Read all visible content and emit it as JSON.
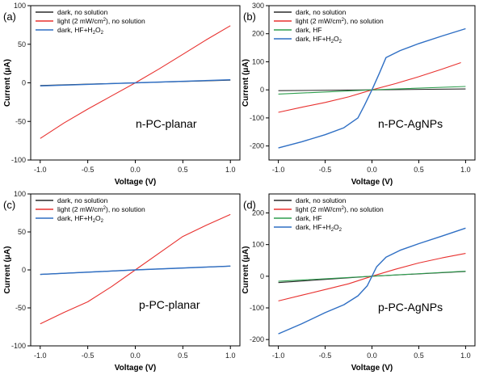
{
  "chart_data": [
    {
      "type": "line",
      "panel_label": "(a)",
      "annotation": "n-PC-planar",
      "xlabel": "Voltage (V)",
      "ylabel": "Current (μA)",
      "xlim": [
        -1.1,
        1.1
      ],
      "ylim": [
        -100,
        100
      ],
      "xticks": [
        -1.0,
        -0.5,
        0.0,
        0.5,
        1.0
      ],
      "xtick_labels": [
        "-1.0",
        "-0.5",
        "0.0",
        "0.5",
        "1.0"
      ],
      "yticks": [
        -100,
        -50,
        0,
        50,
        100
      ],
      "ytick_labels": [
        "-100",
        "-50",
        "0",
        "50",
        "100"
      ],
      "legend_position": "top-left",
      "grid": false,
      "series": [
        {
          "name": "dark, no solution",
          "color": "#2b2b2b",
          "x": [
            -1.0,
            0.0,
            1.0
          ],
          "y": [
            -3.5,
            0,
            3.5
          ]
        },
        {
          "name": "light (2 mW/cm",
          "name_sup": "2",
          "name_tail": "), no solution",
          "color": "#e8312f",
          "x": [
            -1.0,
            -0.75,
            -0.5,
            -0.25,
            0.0,
            0.25,
            0.5,
            0.75,
            1.0
          ],
          "y": [
            -72,
            -52,
            -34,
            -17,
            0,
            18,
            37,
            56,
            74
          ]
        },
        {
          "name": "dark, HF+H",
          "name_sub": "2",
          "name_tail": "O",
          "name_sub2": "2",
          "color": "#2f6fc4",
          "x": [
            -1.0,
            0.0,
            1.0
          ],
          "y": [
            -4,
            0,
            4
          ]
        }
      ]
    },
    {
      "type": "line",
      "panel_label": "(b)",
      "annotation": "n-PC-AgNPs",
      "xlabel": "Voltage (V)",
      "ylabel": "Current (μA)",
      "xlim": [
        -1.1,
        1.1
      ],
      "ylim": [
        -250,
        300
      ],
      "xticks": [
        -1.0,
        -0.5,
        0.0,
        0.5,
        1.0
      ],
      "xtick_labels": [
        "-1.0",
        "-0.5",
        "0.0",
        "0.5",
        "1.0"
      ],
      "yticks": [
        -200,
        -100,
        0,
        100,
        200,
        300
      ],
      "ytick_labels": [
        "-200",
        "-100",
        "0",
        "100",
        "200",
        "300"
      ],
      "legend_position": "top-left",
      "grid": false,
      "series": [
        {
          "name": "dark, no solution",
          "color": "#2b2b2b",
          "x": [
            -1.0,
            0.0,
            1.0
          ],
          "y": [
            -3,
            0,
            3
          ]
        },
        {
          "name": "light (2 mW/cm",
          "name_sup": "2",
          "name_tail": "), no solution",
          "color": "#e8312f",
          "x": [
            -1.0,
            -0.75,
            -0.5,
            -0.25,
            0.0,
            0.25,
            0.5,
            0.75,
            0.95
          ],
          "y": [
            -80,
            -62,
            -45,
            -25,
            0,
            22,
            47,
            74,
            97
          ]
        },
        {
          "name": "dark, HF",
          "color": "#2e9e4e",
          "x": [
            -1.0,
            0.0,
            1.0
          ],
          "y": [
            -15,
            0,
            12
          ]
        },
        {
          "name": "dark, HF+H",
          "name_sub": "2",
          "name_tail": "O",
          "name_sub2": "2",
          "color": "#2f6fc4",
          "x": [
            -1.0,
            -0.75,
            -0.5,
            -0.3,
            -0.15,
            -0.08,
            0.0,
            0.08,
            0.15,
            0.3,
            0.5,
            0.75,
            1.0
          ],
          "y": [
            -207,
            -185,
            -160,
            -135,
            -100,
            -55,
            0,
            60,
            115,
            140,
            165,
            192,
            218
          ]
        }
      ]
    },
    {
      "type": "line",
      "panel_label": "(c)",
      "annotation": "p-PC-planar",
      "xlabel": "Voltage (V)",
      "ylabel": "Current (μA)",
      "xlim": [
        -1.1,
        1.1
      ],
      "ylim": [
        -100,
        100
      ],
      "xticks": [
        -1.0,
        -0.5,
        0.0,
        0.5,
        1.0
      ],
      "xtick_labels": [
        "-1.0",
        "-0.5",
        "0.0",
        "0.5",
        "1.0"
      ],
      "yticks": [
        -100,
        -50,
        0,
        50,
        100
      ],
      "ytick_labels": [
        "-100",
        "-50",
        "0",
        "50",
        "100"
      ],
      "legend_position": "top-left",
      "grid": false,
      "series": [
        {
          "name": "dark, no solution",
          "color": "#2b2b2b",
          "x": [
            -1.0,
            0.0,
            1.0
          ],
          "y": [
            -6,
            0,
            5
          ]
        },
        {
          "name": "light (2 mW/cm",
          "name_sup": "2",
          "name_tail": "), no solution",
          "color": "#e8312f",
          "x": [
            -1.0,
            -0.75,
            -0.5,
            -0.25,
            0.0,
            0.25,
            0.5,
            0.75,
            1.0
          ],
          "y": [
            -71,
            -56,
            -42,
            -22,
            0,
            22,
            44,
            59,
            73
          ]
        },
        {
          "name": "dark, HF+H",
          "name_sub": "2",
          "name_tail": "O",
          "name_sub2": "2",
          "color": "#2f6fc4",
          "x": [
            -1.0,
            0.0,
            1.0
          ],
          "y": [
            -6,
            0,
            5
          ]
        }
      ]
    },
    {
      "type": "line",
      "panel_label": "(d)",
      "annotation": "p-PC-AgNPs",
      "xlabel": "Voltage (V)",
      "ylabel": "Current (μA)",
      "xlim": [
        -1.1,
        1.1
      ],
      "ylim": [
        -220,
        260
      ],
      "xticks": [
        -1.0,
        -0.5,
        0.0,
        0.5,
        1.0
      ],
      "xtick_labels": [
        "-1.0",
        "-0.5",
        "0.0",
        "0.5",
        "1.0"
      ],
      "yticks": [
        -200,
        -100,
        0,
        100,
        200
      ],
      "ytick_labels": [
        "-200",
        "-100",
        "0",
        "100",
        "200"
      ],
      "legend_position": "top-left",
      "grid": false,
      "series": [
        {
          "name": "dark, no solution",
          "color": "#2b2b2b",
          "x": [
            -1.0,
            0.0,
            1.0
          ],
          "y": [
            -20,
            0,
            15
          ]
        },
        {
          "name": "light (2 mW/cm",
          "name_sup": "2",
          "name_tail": "), no solution",
          "color": "#e8312f",
          "x": [
            -1.0,
            -0.75,
            -0.5,
            -0.25,
            0.0,
            0.25,
            0.5,
            0.75,
            1.0
          ],
          "y": [
            -78,
            -60,
            -42,
            -24,
            0,
            22,
            42,
            58,
            72
          ]
        },
        {
          "name": "dark, HF",
          "color": "#2e9e4e",
          "x": [
            -1.0,
            0.0,
            1.0
          ],
          "y": [
            -16,
            0,
            16
          ]
        },
        {
          "name": "dark, HF+H",
          "name_sub": "2",
          "name_tail": "O",
          "name_sub2": "2",
          "color": "#2f6fc4",
          "x": [
            -1.0,
            -0.75,
            -0.5,
            -0.3,
            -0.15,
            -0.05,
            0.0,
            0.05,
            0.15,
            0.3,
            0.5,
            0.75,
            1.0
          ],
          "y": [
            -182,
            -150,
            -115,
            -90,
            -62,
            -30,
            0,
            30,
            60,
            82,
            103,
            127,
            152
          ]
        }
      ]
    }
  ]
}
